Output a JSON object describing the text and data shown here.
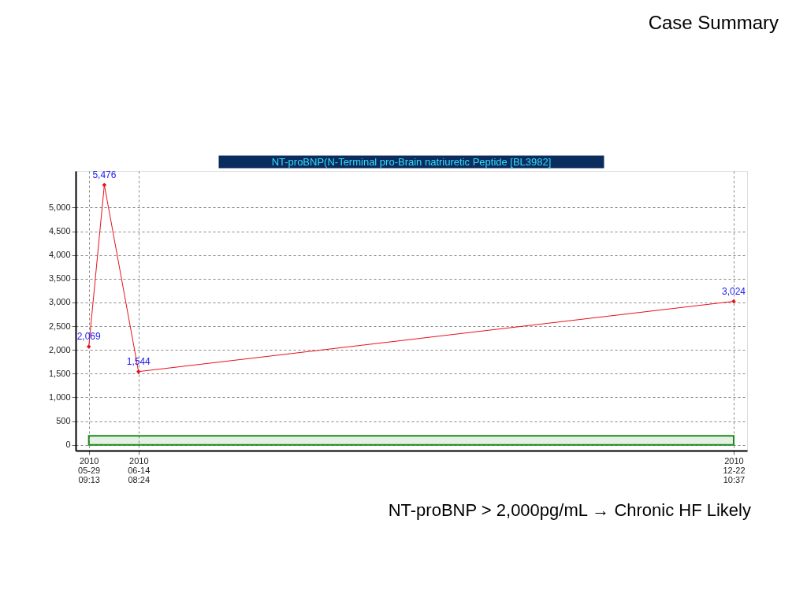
{
  "chart_data": {
    "type": "line",
    "title": "Case Summary",
    "subtitle": "NT-proBNP(N-Terminal pro-Brain natriuretic Peptide [BL3982]",
    "annotations": [
      "NT-proBNP > 2,000pg/mL → Chronic HF Likely"
    ],
    "x": [
      "2010-05-29T09:13",
      "2010-06-03T09:00",
      "2010-06-14T08:24",
      "2010-12-22T10:37"
    ],
    "series": [
      {
        "color": "#e8101c",
        "values": [
          2069,
          5476,
          1544,
          3024
        ]
      }
    ],
    "value_labels": [
      "2,069",
      "5,476",
      "1,544",
      "3,024"
    ],
    "marker": "diamond",
    "line_style": "solid",
    "grid": true,
    "xlim": [
      "2010-05-25T04:00",
      "2010-12-26T18:00"
    ],
    "xticks": [
      {
        "value": "2010-05-29T09:13",
        "label": "2010\n05-29\n09:13"
      },
      {
        "value": "2010-06-14T08:24",
        "label": "2010\n06-14\n08:24"
      },
      {
        "value": "2010-12-22T10:37",
        "label": "2010\n12-22\n10:37"
      }
    ],
    "ylim": [
      -120,
      5770
    ],
    "yticks": [
      {
        "value": 0,
        "label": "0"
      },
      {
        "value": 500,
        "label": "500"
      },
      {
        "value": 1000,
        "label": "1,000"
      },
      {
        "value": 1500,
        "label": "1,500"
      },
      {
        "value": 2000,
        "label": "2,000"
      },
      {
        "value": 2500,
        "label": "2,500"
      },
      {
        "value": 3000,
        "label": "3,000"
      },
      {
        "value": 3500,
        "label": "3,500"
      },
      {
        "value": 4000,
        "label": "4,000"
      },
      {
        "value": 4500,
        "label": "4,500"
      },
      {
        "value": 5000,
        "label": "5,000"
      }
    ],
    "bands": [
      {
        "axis": "y",
        "from": 0,
        "to": 190,
        "color": "#1e8a1e"
      }
    ]
  }
}
